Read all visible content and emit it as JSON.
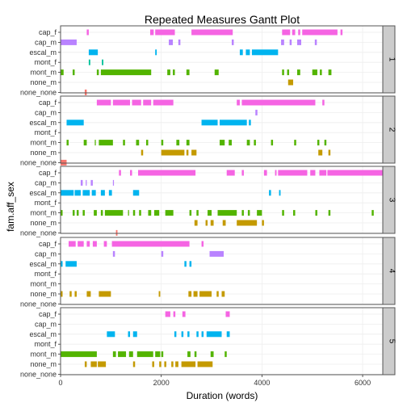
{
  "chart_data": {
    "type": "gantt",
    "title": "Repeated Measures Gantt Plot",
    "xlabel": "Duration (words)",
    "ylabel": "fam.aff_sex",
    "xlim": [
      0,
      6400
    ],
    "x_ticks": [
      0,
      2000,
      4000,
      6000
    ],
    "x_tick_labels": [
      "0",
      "2000",
      "4000",
      "6000"
    ],
    "categories": [
      "cap_f",
      "cap_m",
      "escal_m",
      "mont_f",
      "mont_m",
      "none_m",
      "none_none"
    ],
    "colors": {
      "cap_f": "#f564e3",
      "cap_m": "#b983ff",
      "escal_m": "#00b4ef",
      "mont_f": "#00c19a",
      "mont_m": "#53b400",
      "none_m": "#c49a00",
      "none_none": "#f8766d"
    },
    "panels": [
      {
        "label": "1",
        "rows": {
          "cap_f": [
            [
              520,
              560
            ],
            [
              1780,
              1850
            ],
            [
              1880,
              2270
            ],
            [
              2600,
              3420
            ],
            [
              4400,
              4560
            ],
            [
              4600,
              4660
            ],
            [
              4720,
              4760
            ],
            [
              4800,
              5500
            ],
            [
              5560,
              5600
            ]
          ],
          "cap_m": [
            [
              0,
              320
            ],
            [
              2150,
              2230
            ],
            [
              2340,
              2380
            ],
            [
              3400,
              3440
            ],
            [
              4380,
              4440
            ],
            [
              4550,
              4590
            ],
            [
              4700,
              4780
            ],
            [
              5050,
              5090
            ]
          ],
          "escal_m": [
            [
              560,
              740
            ],
            [
              1880,
              1910
            ],
            [
              3560,
              3620
            ],
            [
              3680,
              3760
            ],
            [
              3800,
              4320
            ]
          ],
          "mont_f": [
            [
              560,
              590
            ],
            [
              820,
              850
            ]
          ],
          "mont_m": [
            [
              0,
              60
            ],
            [
              240,
              280
            ],
            [
              720,
              760
            ],
            [
              800,
              1800
            ],
            [
              2120,
              2180
            ],
            [
              2230,
              2270
            ],
            [
              2500,
              2560
            ],
            [
              3060,
              3140
            ],
            [
              4400,
              4440
            ],
            [
              4500,
              4540
            ],
            [
              4700,
              4760
            ],
            [
              5000,
              5100
            ],
            [
              5150,
              5190
            ],
            [
              5320,
              5380
            ]
          ],
          "none_m": [
            [
              4520,
              4620
            ]
          ],
          "none_none": [
            [
              480,
              520
            ]
          ]
        }
      },
      {
        "label": "2",
        "rows": {
          "cap_f": [
            [
              720,
              1000
            ],
            [
              1040,
              1380
            ],
            [
              1420,
              1600
            ],
            [
              1640,
              1800
            ],
            [
              1840,
              2240
            ],
            [
              3500,
              3560
            ],
            [
              3600,
              5060
            ],
            [
              5200,
              5240
            ]
          ],
          "cap_m": [
            [
              3870,
              3910
            ]
          ],
          "escal_m": [
            [
              120,
              460
            ],
            [
              2800,
              3120
            ],
            [
              3160,
              3700
            ],
            [
              3740,
              3780
            ]
          ],
          "mont_f": [],
          "mont_m": [
            [
              120,
              160
            ],
            [
              460,
              520
            ],
            [
              680,
              700
            ],
            [
              760,
              1040
            ],
            [
              1240,
              1280
            ],
            [
              1500,
              1560
            ],
            [
              1700,
              1740
            ],
            [
              2000,
              2040
            ],
            [
              2300,
              2360
            ],
            [
              2500,
              2560
            ],
            [
              3160,
              3260
            ],
            [
              3340,
              3400
            ],
            [
              3700,
              3760
            ],
            [
              3840,
              3880
            ],
            [
              4180,
              4220
            ],
            [
              4640,
              4680
            ],
            [
              5100,
              5140
            ],
            [
              5240,
              5280
            ]
          ],
          "none_m": [
            [
              1600,
              1640
            ],
            [
              2000,
              2460
            ],
            [
              2500,
              2540
            ],
            [
              2600,
              2700
            ],
            [
              5120,
              5200
            ],
            [
              5320,
              5360
            ]
          ],
          "none_none": [
            [
              0,
              120
            ]
          ]
        }
      },
      {
        "label": "3",
        "rows": {
          "cap_f": [
            [
              1160,
              1200
            ],
            [
              1380,
              1420
            ],
            [
              1540,
              2680
            ],
            [
              3300,
              3460
            ],
            [
              3600,
              3640
            ],
            [
              4040,
              4100
            ],
            [
              4260,
              4290
            ],
            [
              4320,
              4900
            ],
            [
              4960,
              5060
            ],
            [
              5140,
              5280
            ],
            [
              5300,
              6400
            ]
          ],
          "cap_m": [
            [
              400,
              440
            ],
            [
              500,
              520
            ],
            [
              600,
              640
            ],
            [
              1040,
              1060
            ]
          ],
          "escal_m": [
            [
              0,
              260
            ],
            [
              280,
              400
            ],
            [
              440,
              580
            ],
            [
              620,
              700
            ],
            [
              800,
              880
            ],
            [
              960,
              1020
            ],
            [
              1440,
              1560
            ],
            [
              4140,
              4180
            ],
            [
              4340,
              4370
            ]
          ],
          "mont_f": [],
          "mont_m": [
            [
              0,
              40
            ],
            [
              240,
              280
            ],
            [
              320,
              360
            ],
            [
              440,
              480
            ],
            [
              660,
              720
            ],
            [
              800,
              840
            ],
            [
              880,
              1240
            ],
            [
              1340,
              1360
            ],
            [
              1440,
              1480
            ],
            [
              1560,
              1600
            ],
            [
              1740,
              1800
            ],
            [
              1860,
              1960
            ],
            [
              2080,
              2240
            ],
            [
              2560,
              2600
            ],
            [
              2700,
              2740
            ],
            [
              2920,
              3000
            ],
            [
              3120,
              3500
            ],
            [
              3600,
              3640
            ],
            [
              3720,
              3760
            ],
            [
              3900,
              4000
            ],
            [
              4400,
              4440
            ],
            [
              4620,
              4660
            ],
            [
              5060,
              5100
            ],
            [
              5320,
              5360
            ],
            [
              6180,
              6220
            ]
          ],
          "none_m": [
            [
              2660,
              2720
            ],
            [
              2880,
              2920
            ],
            [
              2980,
              3040
            ],
            [
              3220,
              3280
            ],
            [
              3500,
              3900
            ],
            [
              4000,
              4040
            ]
          ],
          "none_none": [
            [
              1100,
              1130
            ]
          ]
        }
      },
      {
        "label": "4",
        "rows": {
          "cap_f": [
            [
              160,
              300
            ],
            [
              340,
              460
            ],
            [
              520,
              580
            ],
            [
              640,
              720
            ],
            [
              860,
              920
            ],
            [
              1020,
              2560
            ],
            [
              2800,
              2840
            ]
          ],
          "cap_m": [
            [
              1040,
              1080
            ],
            [
              2000,
              2040
            ],
            [
              2960,
              3240
            ]
          ],
          "escal_m": [
            [
              0,
              40
            ],
            [
              100,
              320
            ],
            [
              2460,
              2500
            ],
            [
              2560,
              2600
            ]
          ],
          "mont_f": [],
          "mont_m": [],
          "none_m": [
            [
              0,
              40
            ],
            [
              180,
              220
            ],
            [
              280,
              320
            ],
            [
              520,
              600
            ],
            [
              760,
              1000
            ],
            [
              1950,
              1980
            ],
            [
              2540,
              2600
            ],
            [
              2640,
              2720
            ],
            [
              2760,
              3000
            ],
            [
              3100,
              3140
            ],
            [
              3200,
              3260
            ]
          ],
          "none_none": []
        }
      },
      {
        "label": "5",
        "rows": {
          "cap_f": [
            [
              2080,
              2180
            ],
            [
              2240,
              2280
            ],
            [
              2420,
              2480
            ],
            [
              3280,
              3360
            ]
          ],
          "cap_m": [],
          "escal_m": [
            [
              920,
              1080
            ],
            [
              1340,
              1380
            ],
            [
              1440,
              1520
            ],
            [
              2260,
              2300
            ],
            [
              2400,
              2440
            ],
            [
              2520,
              2560
            ],
            [
              2700,
              2740
            ],
            [
              2800,
              2840
            ],
            [
              2900,
              3200
            ],
            [
              3300,
              3360
            ]
          ],
          "mont_f": [],
          "mont_m": [
            [
              0,
              720
            ],
            [
              1040,
              1100
            ],
            [
              1140,
              1300
            ],
            [
              1360,
              1440
            ],
            [
              1520,
              1840
            ],
            [
              1880,
              1980
            ],
            [
              2000,
              2040
            ],
            [
              2520,
              2580
            ],
            [
              2660,
              2700
            ],
            [
              2980,
              3040
            ],
            [
              3260,
              3300
            ]
          ],
          "none_m": [
            [
              480,
              520
            ],
            [
              600,
              720
            ],
            [
              740,
              900
            ],
            [
              1440,
              1480
            ],
            [
              1820,
              1860
            ],
            [
              1960,
              2000
            ],
            [
              2060,
              2100
            ],
            [
              2200,
              2240
            ],
            [
              2280,
              2340
            ],
            [
              2400,
              2680
            ],
            [
              2720,
              3020
            ]
          ],
          "none_none": []
        }
      }
    ]
  }
}
